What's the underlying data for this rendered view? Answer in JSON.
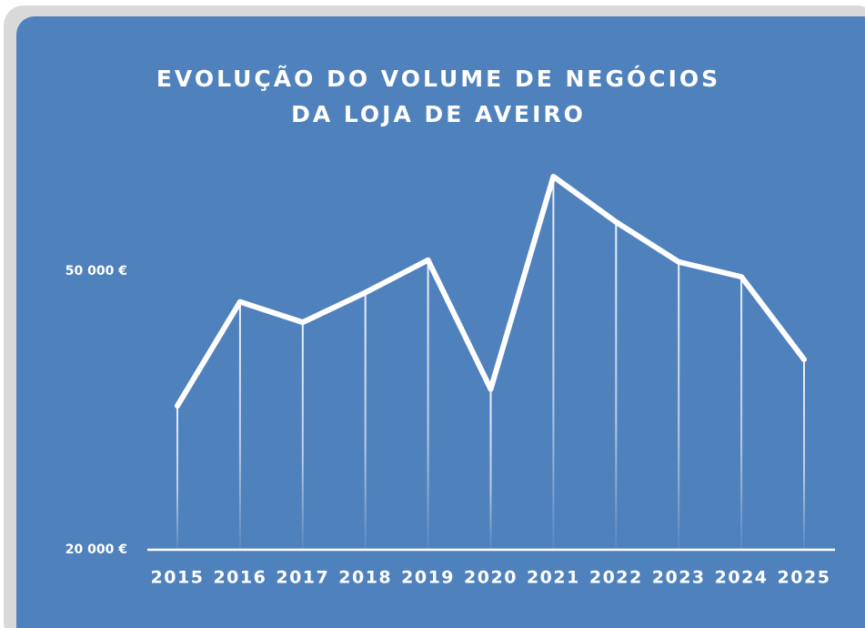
{
  "chart_data": {
    "type": "line",
    "title": [
      "EVOLUÇÃO DO VOLUME DE NEGÓCIOS",
      "DA LOJA DE AVEIRO"
    ],
    "categories": [
      "2015",
      "2016",
      "2017",
      "2018",
      "2019",
      "2020",
      "2021",
      "2022",
      "2023",
      "2024",
      "2025"
    ],
    "values": [
      35500,
      46700,
      44500,
      47700,
      51200,
      37300,
      60200,
      55300,
      51000,
      49400,
      40500
    ],
    "color": "#ffffff",
    "ylim": [
      20000,
      62000
    ],
    "yticks": [
      {
        "value": 20000,
        "label": "20 000 €"
      },
      {
        "value": 50000,
        "label": "50 000 €"
      }
    ],
    "grid": false
  }
}
